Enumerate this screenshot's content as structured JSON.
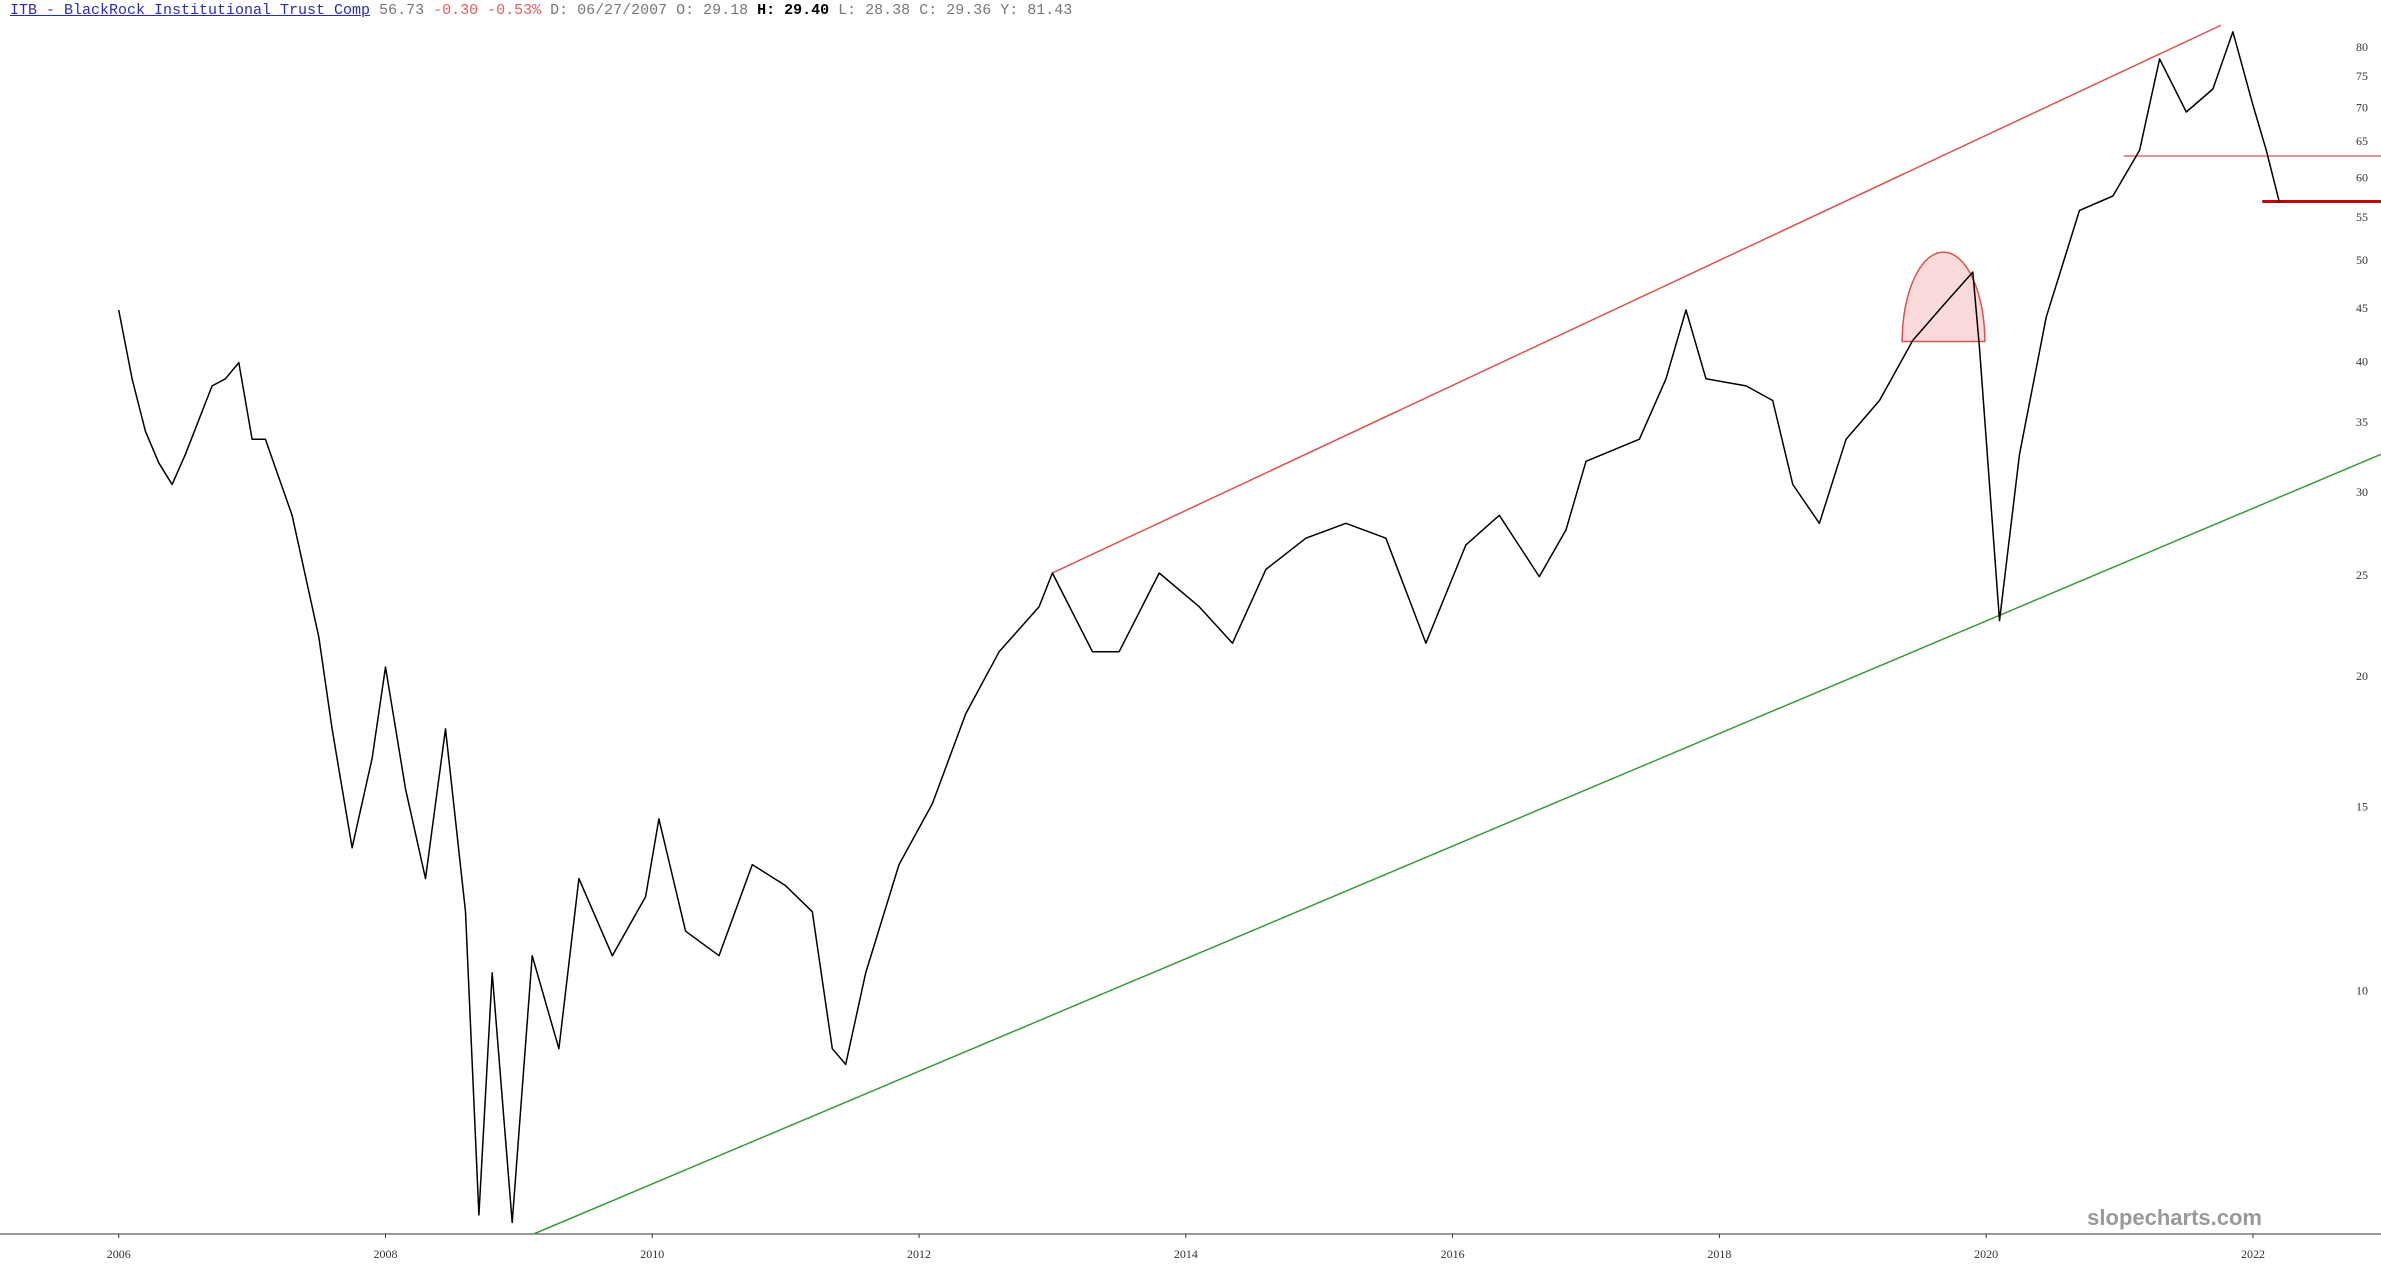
{
  "chart_data": {
    "type": "line",
    "title": "ITB - BlackRock Institutional Trust Comp",
    "quote": {
      "last": "56.73",
      "change": "-0.30",
      "change_pct": "-0.53%",
      "date": "D: 06/27/2007",
      "open": "O: 29.18",
      "high": "H: 29.40",
      "low": "L: 28.38",
      "close": "C: 29.36",
      "year": "Y: 81.43"
    },
    "watermark": "slopecharts.com",
    "log_scale": true,
    "grid": false,
    "color": "#000000",
    "x": [
      2006.0,
      2006.1,
      2006.2,
      2006.3,
      2006.4,
      2006.5,
      2006.7,
      2006.8,
      2006.9,
      2007.0,
      2007.1,
      2007.3,
      2007.5,
      2007.6,
      2007.75,
      2007.9,
      2008.0,
      2008.15,
      2008.3,
      2008.45,
      2008.6,
      2008.7,
      2008.8,
      2008.95,
      2009.1,
      2009.3,
      2009.45,
      2009.7,
      2009.95,
      2010.05,
      2010.25,
      2010.5,
      2010.75,
      2011.0,
      2011.2,
      2011.35,
      2011.45,
      2011.6,
      2011.85,
      2012.1,
      2012.35,
      2012.6,
      2012.9,
      2013.0,
      2013.3,
      2013.5,
      2013.8,
      2014.1,
      2014.35,
      2014.6,
      2014.9,
      2015.2,
      2015.5,
      2015.8,
      2016.1,
      2016.35,
      2016.65,
      2016.85,
      2017.0,
      2017.4,
      2017.6,
      2017.75,
      2017.9,
      2018.2,
      2018.4,
      2018.55,
      2018.75,
      2018.95,
      2019.2,
      2019.45,
      2019.7,
      2019.9,
      2019.95,
      2020.1,
      2020.25,
      2020.45,
      2020.7,
      2020.95,
      2021.15,
      2021.3,
      2021.5,
      2021.7,
      2021.85,
      2022.0,
      2022.1,
      2022.2
    ],
    "values": [
      44.8,
      38.5,
      34.3,
      32.0,
      30.5,
      32.6,
      37.9,
      38.5,
      39.9,
      33.7,
      33.7,
      28.5,
      21.8,
      17.8,
      13.7,
      16.7,
      20.4,
      15.6,
      12.8,
      17.8,
      11.9,
      6.1,
      10.4,
      6.0,
      10.8,
      8.8,
      12.8,
      10.8,
      12.3,
      14.6,
      11.4,
      10.8,
      13.2,
      12.6,
      11.9,
      8.8,
      8.5,
      10.4,
      13.2,
      15.1,
      18.4,
      21.1,
      23.3,
      25.1,
      21.1,
      21.1,
      25.1,
      23.3,
      21.5,
      25.3,
      27.1,
      28.0,
      27.1,
      21.5,
      26.7,
      28.5,
      24.9,
      27.6,
      32.1,
      33.7,
      38.5,
      44.8,
      38.5,
      37.9,
      36.7,
      30.5,
      28.0,
      33.7,
      36.7,
      41.9,
      45.6,
      48.7,
      41.2,
      22.6,
      32.6,
      44.1,
      55.8,
      57.6,
      63.7,
      77.9,
      69.3,
      72.9,
      82.7,
      70.4,
      63.7,
      56.7
    ],
    "xlim": [
      2005.11,
      2022.96
    ],
    "ylim": [
      5.85,
      88.7
    ],
    "xticks": [
      2006,
      2008,
      2010,
      2012,
      2014,
      2016,
      2018,
      2020,
      2022
    ],
    "yticks": [
      10,
      15,
      20,
      25,
      30,
      35,
      40,
      45,
      50,
      55,
      60,
      65,
      70,
      75,
      80
    ],
    "trendlines": [
      {
        "x": [
          2013.0,
          2021.76
        ],
        "y": [
          25.1,
          83.9
        ],
        "color": "#d9534f"
      },
      {
        "x": [
          2009.11,
          2022.96
        ],
        "y": [
          5.85,
          32.6
        ],
        "color": "#3a9a3a"
      },
      {
        "x": [
          2021.03,
          2022.96
        ],
        "y": [
          62.9,
          62.9
        ],
        "color": "#e07070"
      },
      {
        "x": [
          2022.07,
          2022.96
        ],
        "y": [
          56.9,
          56.9
        ],
        "color": "#cc0000"
      }
    ],
    "dome": {
      "x": [
        2019.37,
        2019.99
      ],
      "base": 41.8,
      "peak": 50.9,
      "color": "#d9534f",
      "fill": "#f8d0d0"
    }
  }
}
